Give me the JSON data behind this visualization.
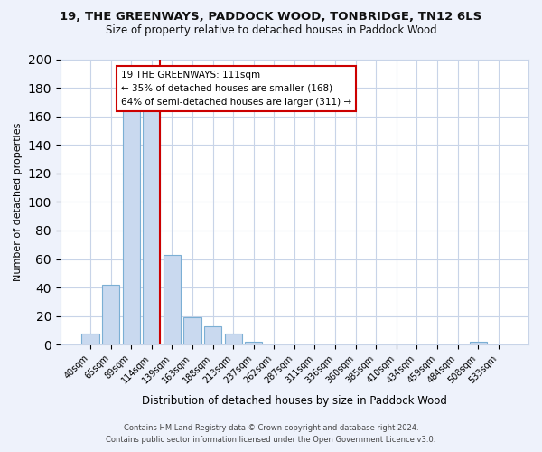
{
  "title": "19, THE GREENWAYS, PADDOCK WOOD, TONBRIDGE, TN12 6LS",
  "subtitle": "Size of property relative to detached houses in Paddock Wood",
  "xlabel": "Distribution of detached houses by size in Paddock Wood",
  "ylabel": "Number of detached properties",
  "bar_labels": [
    "40sqm",
    "65sqm",
    "89sqm",
    "114sqm",
    "139sqm",
    "163sqm",
    "188sqm",
    "213sqm",
    "237sqm",
    "262sqm",
    "287sqm",
    "311sqm",
    "336sqm",
    "360sqm",
    "385sqm",
    "410sqm",
    "434sqm",
    "459sqm",
    "484sqm",
    "508sqm",
    "533sqm"
  ],
  "bar_values": [
    8,
    42,
    165,
    168,
    63,
    19,
    13,
    8,
    2,
    0,
    0,
    0,
    0,
    0,
    0,
    0,
    0,
    0,
    0,
    2,
    0
  ],
  "bar_color": "#c9d9ef",
  "bar_edge_color": "#7bafd4",
  "vline_color": "#cc0000",
  "vline_x": 3.425,
  "annotation_text": "19 THE GREENWAYS: 111sqm\n← 35% of detached houses are smaller (168)\n64% of semi-detached houses are larger (311) →",
  "annotation_box_color": "#ffffff",
  "annotation_box_edge": "#cc0000",
  "ylim": [
    0,
    200
  ],
  "yticks": [
    0,
    20,
    40,
    60,
    80,
    100,
    120,
    140,
    160,
    180,
    200
  ],
  "footer_line1": "Contains HM Land Registry data © Crown copyright and database right 2024.",
  "footer_line2": "Contains public sector information licensed under the Open Government Licence v3.0.",
  "bg_color": "#eef2fb",
  "plot_bg_color": "#ffffff",
  "grid_color": "#c8d4e8"
}
